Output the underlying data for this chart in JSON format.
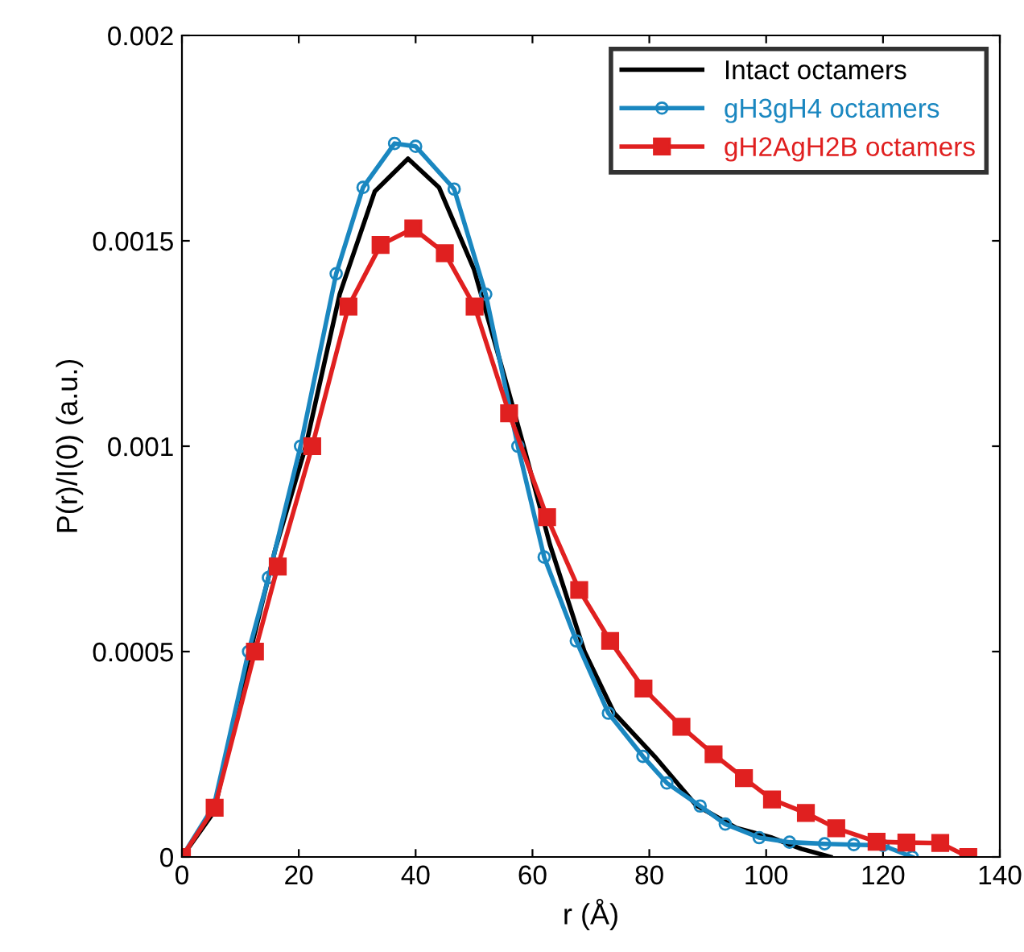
{
  "chart_data": {
    "type": "line",
    "xlabel": "r (Å)",
    "ylabel": "P(r)/I(0) (a.u.)",
    "xlim": [
      0,
      140
    ],
    "ylim": [
      0,
      0.002
    ],
    "xticks": [
      0,
      20,
      40,
      60,
      80,
      100,
      120,
      140
    ],
    "yticks": [
      0,
      0.0005,
      0.001,
      0.0015,
      0.002
    ],
    "grid": false,
    "legend": "top right",
    "series": [
      {
        "name": "Intact octamers",
        "color": "#000000",
        "marker": "none",
        "x": [
          0,
          5.5,
          11.7,
          16,
          21.2,
          27,
          33,
          38.7,
          44,
          50,
          55,
          58.5,
          63,
          68.9,
          74,
          80.9,
          88,
          95,
          101,
          106,
          111
        ],
        "values": [
          0,
          0.00011,
          0.0005,
          0.00075,
          0.001,
          0.00137,
          0.00162,
          0.0017,
          0.00163,
          0.00143,
          0.00118,
          0.001,
          0.00076,
          0.0005,
          0.00035,
          0.000245,
          0.000126,
          7e-05,
          4.7e-05,
          2e-05,
          0
        ]
      },
      {
        "name": "gH3gH4 octamers",
        "color": "#1a87c0",
        "marker": "circle",
        "x": [
          0,
          5.5,
          11.4,
          14.8,
          20.3,
          26.4,
          31,
          36.4,
          40,
          46.6,
          52,
          57.5,
          62,
          67.5,
          73,
          78.9,
          83,
          88.7,
          93,
          98.8,
          104,
          110,
          115,
          120,
          125
        ],
        "values": [
          0,
          0.000126,
          0.0005,
          0.00068,
          0.001,
          0.00142,
          0.00163,
          0.001737,
          0.00173,
          0.001626,
          0.00137,
          0.001,
          0.00073,
          0.000526,
          0.00035,
          0.000245,
          0.00018,
          0.000124,
          8e-05,
          4.7e-05,
          3.6e-05,
          3.2e-05,
          3e-05,
          2.8e-05,
          0
        ]
      },
      {
        "name": "gH2AgH2B octamers",
        "color": "#e02020",
        "marker": "square",
        "x": [
          0,
          5.6,
          12.5,
          16.4,
          22.3,
          28.5,
          34,
          39.6,
          45,
          50.1,
          56,
          62.5,
          68,
          73.3,
          79,
          85.5,
          91,
          96.2,
          101,
          106.8,
          112,
          118.9,
          124,
          129.8,
          134.6
        ],
        "values": [
          0,
          0.00012,
          0.0005,
          0.000707,
          0.001,
          0.00134,
          0.00149,
          0.00153,
          0.00147,
          0.00134,
          0.00108,
          0.000827,
          0.00065,
          0.000526,
          0.00041,
          0.000317,
          0.00025,
          0.000192,
          0.00014,
          0.000107,
          7e-05,
          3.7e-05,
          3.5e-05,
          3.4e-05,
          0
        ]
      }
    ]
  }
}
